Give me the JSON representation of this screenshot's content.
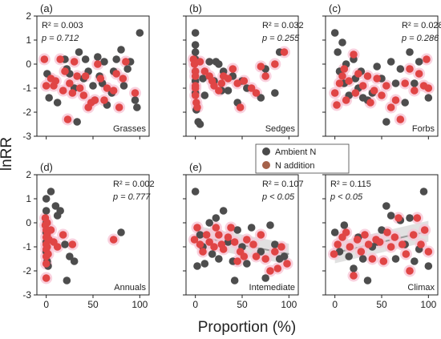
{
  "figure": {
    "ylabel": "lnRR",
    "xlabel": "Proportion (%)",
    "legend": [
      {
        "name": "Ambient N",
        "color": "#4a4a4a"
      },
      {
        "name": "N addition",
        "color": "#a5624a"
      }
    ],
    "point_colors": {
      "ambient": "#4d4d4d",
      "addition": "#e04545",
      "halo": "#f7c6d6"
    },
    "y_ticks": [
      2,
      1,
      0,
      -1,
      -2,
      -3
    ],
    "x_ticks": [
      0,
      50,
      100
    ]
  },
  "chart_data": [
    {
      "id": "a",
      "type": "scatter",
      "panel_label": "(a)",
      "group": "Grasses",
      "r2": "R² = 0.003",
      "p": "p = 0.712",
      "trend": false,
      "xlim": [
        -10,
        110
      ],
      "ylim": [
        -3,
        2
      ],
      "ambient": [
        [
          1,
          -0.4
        ],
        [
          3,
          -1.4
        ],
        [
          12,
          -1.6
        ],
        [
          20,
          0.2
        ],
        [
          22,
          -0.2
        ],
        [
          25,
          -0.4
        ],
        [
          30,
          -1.0
        ],
        [
          33,
          -2.4
        ],
        [
          35,
          0.5
        ],
        [
          40,
          -0.6
        ],
        [
          42,
          0.2
        ],
        [
          45,
          -0.3
        ],
        [
          50,
          -0.9
        ],
        [
          52,
          -1.5
        ],
        [
          55,
          0.3
        ],
        [
          57,
          -0.5
        ],
        [
          60,
          -0.8
        ],
        [
          62,
          0.1
        ],
        [
          65,
          -1.7
        ],
        [
          70,
          -1.2
        ],
        [
          72,
          -0.3
        ],
        [
          75,
          0.2
        ],
        [
          80,
          0.6
        ],
        [
          83,
          -0.9
        ],
        [
          87,
          -0.2
        ],
        [
          90,
          0.1
        ],
        [
          95,
          -1.5
        ],
        [
          97,
          -1.8
        ],
        [
          100,
          1.3
        ]
      ],
      "addition": [
        [
          -2,
          0.2
        ],
        [
          0,
          -0.9
        ],
        [
          5,
          -0.6
        ],
        [
          8,
          -0.9
        ],
        [
          10,
          -0.7
        ],
        [
          15,
          0.2
        ],
        [
          18,
          -1.1
        ],
        [
          20,
          -0.3
        ],
        [
          23,
          -2.3
        ],
        [
          25,
          -0.8
        ],
        [
          28,
          -1.2
        ],
        [
          30,
          0.1
        ],
        [
          33,
          -0.5
        ],
        [
          36,
          -1.0
        ],
        [
          40,
          -1.3
        ],
        [
          42,
          -0.5
        ],
        [
          45,
          -1.8
        ],
        [
          48,
          -1.6
        ],
        [
          52,
          -1.5
        ],
        [
          55,
          0.0
        ],
        [
          58,
          -0.6
        ],
        [
          62,
          -1.5
        ],
        [
          65,
          -1.0
        ],
        [
          72,
          -1.1
        ],
        [
          75,
          -0.4
        ],
        [
          78,
          -1.8
        ],
        [
          82,
          -0.6
        ],
        [
          85,
          0.1
        ],
        [
          95,
          -1.2
        ]
      ]
    },
    {
      "id": "b",
      "type": "scatter",
      "panel_label": "(b)",
      "group": "Sedges",
      "r2": "R² = 0.032",
      "p": "p = 0.255",
      "trend": false,
      "xlim": [
        -10,
        110
      ],
      "ylim": [
        -3,
        2
      ],
      "ambient": [
        [
          0,
          1.3
        ],
        [
          0,
          0.8
        ],
        [
          0,
          0.5
        ],
        [
          0,
          0.2
        ],
        [
          0,
          -0.3
        ],
        [
          0,
          -0.7
        ],
        [
          0,
          -1.2
        ],
        [
          1,
          -1.9
        ],
        [
          3,
          -2.4
        ],
        [
          5,
          -2.5
        ],
        [
          8,
          -0.6
        ],
        [
          10,
          -1.3
        ],
        [
          15,
          0.1
        ],
        [
          20,
          -0.7
        ],
        [
          22,
          0.1
        ],
        [
          25,
          0.0
        ],
        [
          28,
          -1.1
        ],
        [
          30,
          -0.3
        ],
        [
          35,
          -1.1
        ],
        [
          40,
          -0.5
        ],
        [
          45,
          -1.6
        ],
        [
          50,
          -0.7
        ],
        [
          55,
          -1.0
        ],
        [
          70,
          -1.4
        ],
        [
          75,
          -0.2
        ],
        [
          85,
          -1.2
        ],
        [
          90,
          0.5
        ]
      ],
      "addition": [
        [
          -2,
          0.2
        ],
        [
          -1,
          0.0
        ],
        [
          0,
          -0.3
        ],
        [
          0,
          -0.5
        ],
        [
          0,
          -0.9
        ],
        [
          0,
          -1.0
        ],
        [
          0,
          -1.3
        ],
        [
          1,
          -1.6
        ],
        [
          2,
          -1.8
        ],
        [
          5,
          0.1
        ],
        [
          10,
          -0.3
        ],
        [
          15,
          -0.5
        ],
        [
          18,
          -0.7
        ],
        [
          20,
          -0.9
        ],
        [
          25,
          -1.1
        ],
        [
          28,
          -0.8
        ],
        [
          30,
          -0.5
        ],
        [
          35,
          -0.6
        ],
        [
          40,
          -0.2
        ],
        [
          45,
          -0.8
        ],
        [
          48,
          -1.8
        ],
        [
          52,
          -0.7
        ],
        [
          60,
          -1.0
        ],
        [
          65,
          -1.2
        ],
        [
          70,
          -0.1
        ],
        [
          75,
          -0.5
        ],
        [
          85,
          0.0
        ],
        [
          95,
          0.5
        ]
      ]
    },
    {
      "id": "c",
      "type": "scatter",
      "panel_label": "(c)",
      "group": "Forbs",
      "r2": "R² = 0.028",
      "p": "p = 0.286",
      "trend": false,
      "xlim": [
        -10,
        110
      ],
      "ylim": [
        -3,
        2
      ],
      "ambient": [
        [
          0,
          1.3
        ],
        [
          3,
          0.5
        ],
        [
          5,
          -0.3
        ],
        [
          8,
          0.9
        ],
        [
          10,
          -0.8
        ],
        [
          12,
          0.0
        ],
        [
          15,
          -1.3
        ],
        [
          20,
          0.2
        ],
        [
          22,
          -0.6
        ],
        [
          25,
          -1.0
        ],
        [
          28,
          -0.3
        ],
        [
          30,
          -1.4
        ],
        [
          35,
          -1.5
        ],
        [
          40,
          -1.2
        ],
        [
          45,
          -0.1
        ],
        [
          50,
          -0.6
        ],
        [
          55,
          -2.4
        ],
        [
          60,
          0.1
        ],
        [
          65,
          -0.8
        ],
        [
          70,
          -0.2
        ],
        [
          75,
          -1.6
        ],
        [
          80,
          0.5
        ],
        [
          85,
          -0.8
        ],
        [
          90,
          0.1
        ],
        [
          100,
          -1.4
        ]
      ],
      "addition": [
        [
          0,
          -1.2
        ],
        [
          2,
          -1.7
        ],
        [
          5,
          -0.8
        ],
        [
          8,
          -0.5
        ],
        [
          10,
          -0.2
        ],
        [
          12,
          -1.5
        ],
        [
          15,
          -0.7
        ],
        [
          20,
          0.4
        ],
        [
          22,
          -1.2
        ],
        [
          25,
          -0.4
        ],
        [
          30,
          -0.9
        ],
        [
          35,
          -0.5
        ],
        [
          38,
          -1.6
        ],
        [
          42,
          -1.1
        ],
        [
          45,
          -0.6
        ],
        [
          50,
          -1.3
        ],
        [
          55,
          -0.9
        ],
        [
          60,
          -1.8
        ],
        [
          65,
          -1.5
        ],
        [
          70,
          -2.3
        ],
        [
          75,
          -0.8
        ],
        [
          80,
          -0.2
        ],
        [
          85,
          -1.1
        ],
        [
          90,
          -0.4
        ],
        [
          95,
          -0.9
        ],
        [
          98,
          0.2
        ],
        [
          100,
          -1.0
        ]
      ]
    },
    {
      "id": "d",
      "type": "scatter",
      "panel_label": "(d)",
      "group": "Annuals",
      "r2": "R² = 0.002",
      "p": "p = 0.777",
      "trend": false,
      "xlim": [
        -10,
        110
      ],
      "ylim": [
        -3,
        2
      ],
      "ambient": [
        [
          0,
          1.0
        ],
        [
          0,
          0.5
        ],
        [
          0,
          0.0
        ],
        [
          0,
          -0.4
        ],
        [
          0,
          -0.8
        ],
        [
          0,
          -1.2
        ],
        [
          1,
          -1.6
        ],
        [
          2,
          -1.8
        ],
        [
          5,
          1.3
        ],
        [
          10,
          0.7
        ],
        [
          12,
          0.3
        ],
        [
          15,
          0.5
        ],
        [
          20,
          -0.9
        ],
        [
          22,
          -2.4
        ],
        [
          25,
          -1.4
        ],
        [
          30,
          -1.6
        ],
        [
          80,
          -0.4
        ]
      ],
      "addition": [
        [
          -1,
          0.2
        ],
        [
          -1,
          -0.1
        ],
        [
          0,
          -0.3
        ],
        [
          0,
          -0.6
        ],
        [
          0,
          -0.9
        ],
        [
          0,
          -1.1
        ],
        [
          0,
          -1.4
        ],
        [
          0,
          -1.7
        ],
        [
          0,
          -2.3
        ],
        [
          1,
          0.0
        ],
        [
          1,
          -0.5
        ],
        [
          1,
          -1.0
        ],
        [
          2,
          -1.3
        ],
        [
          3,
          -0.7
        ],
        [
          5,
          -0.3
        ],
        [
          8,
          -0.8
        ],
        [
          12,
          -1.0
        ],
        [
          18,
          -0.5
        ],
        [
          28,
          -0.9
        ],
        [
          72,
          -0.7
        ]
      ]
    },
    {
      "id": "e",
      "type": "scatter",
      "panel_label": "(e)",
      "group": "Intemediate",
      "r2": "R² = 0.107",
      "p": "p < 0.05",
      "trend": true,
      "trend_line": [
        [
          0,
          -0.55
        ],
        [
          100,
          -1.3
        ]
      ],
      "xlim": [
        -10,
        110
      ],
      "ylim": [
        -3,
        2
      ],
      "ambient": [
        [
          0,
          1.3
        ],
        [
          2,
          -1.8
        ],
        [
          5,
          -0.5
        ],
        [
          8,
          -1.0
        ],
        [
          10,
          -1.7
        ],
        [
          15,
          0.0
        ],
        [
          18,
          -1.3
        ],
        [
          22,
          0.2
        ],
        [
          25,
          -1.5
        ],
        [
          30,
          0.5
        ],
        [
          35,
          -0.8
        ],
        [
          40,
          -1.6
        ],
        [
          42,
          -2.4
        ],
        [
          45,
          -0.3
        ],
        [
          50,
          -1.0
        ],
        [
          55,
          -1.7
        ],
        [
          60,
          -0.2
        ],
        [
          70,
          -1.2
        ],
        [
          75,
          -2.3
        ],
        [
          80,
          -0.1
        ],
        [
          85,
          -0.9
        ],
        [
          90,
          -1.5
        ],
        [
          95,
          -1.4
        ]
      ],
      "addition": [
        [
          -1,
          -0.7
        ],
        [
          2,
          -0.2
        ],
        [
          5,
          -0.9
        ],
        [
          8,
          -1.2
        ],
        [
          12,
          -0.5
        ],
        [
          15,
          -0.8
        ],
        [
          20,
          -1.0
        ],
        [
          22,
          -0.2
        ],
        [
          25,
          -0.5
        ],
        [
          28,
          -0.9
        ],
        [
          30,
          -1.1
        ],
        [
          35,
          -0.6
        ],
        [
          38,
          -0.2
        ],
        [
          42,
          -0.8
        ],
        [
          45,
          -1.6
        ],
        [
          48,
          -1.2
        ],
        [
          52,
          -1.4
        ],
        [
          55,
          -0.7
        ],
        [
          62,
          -0.9
        ],
        [
          65,
          -1.4
        ],
        [
          70,
          -0.5
        ],
        [
          75,
          -1.5
        ],
        [
          80,
          -2.0
        ],
        [
          85,
          -1.2
        ],
        [
          88,
          -1.9
        ],
        [
          92,
          -1.0
        ],
        [
          98,
          -1.7
        ]
      ]
    },
    {
      "id": "f",
      "type": "scatter",
      "panel_label": "(f)",
      "group": "Climax",
      "r2": "R² = 0.115",
      "p": "p < 0.05",
      "trend": true,
      "trend_line": [
        [
          0,
          -1.25
        ],
        [
          100,
          -0.35
        ]
      ],
      "xlim": [
        -10,
        110
      ],
      "ylim": [
        -3,
        2
      ],
      "ambient": [
        [
          0,
          -0.4
        ],
        [
          5,
          -1.2
        ],
        [
          10,
          -0.1
        ],
        [
          15,
          -1.4
        ],
        [
          20,
          -1.9
        ],
        [
          25,
          -0.6
        ],
        [
          30,
          -1.5
        ],
        [
          35,
          -2.4
        ],
        [
          40,
          -1.0
        ],
        [
          45,
          -0.8
        ],
        [
          50,
          -0.3
        ],
        [
          55,
          0.7
        ],
        [
          60,
          0.3
        ],
        [
          65,
          -1.5
        ],
        [
          70,
          0.1
        ],
        [
          75,
          -0.9
        ],
        [
          80,
          0.2
        ],
        [
          85,
          -1.6
        ],
        [
          90,
          -1.1
        ],
        [
          95,
          1.3
        ],
        [
          100,
          -1.8
        ]
      ],
      "addition": [
        [
          -1,
          -1.3
        ],
        [
          3,
          -0.9
        ],
        [
          8,
          -0.6
        ],
        [
          12,
          -0.4
        ],
        [
          16,
          -1.0
        ],
        [
          20,
          -2.2
        ],
        [
          24,
          -0.7
        ],
        [
          28,
          -1.2
        ],
        [
          32,
          -0.5
        ],
        [
          36,
          -0.9
        ],
        [
          40,
          -1.5
        ],
        [
          44,
          -0.7
        ],
        [
          48,
          -0.8
        ],
        [
          52,
          -1.6
        ],
        [
          56,
          -0.4
        ],
        [
          60,
          -1.0
        ],
        [
          64,
          -0.6
        ],
        [
          68,
          0.2
        ],
        [
          72,
          -0.9
        ],
        [
          76,
          -1.3
        ],
        [
          80,
          -2.0
        ],
        [
          84,
          -0.5
        ],
        [
          88,
          0.2
        ],
        [
          92,
          -0.9
        ],
        [
          96,
          -0.3
        ],
        [
          100,
          -1.2
        ]
      ]
    }
  ]
}
